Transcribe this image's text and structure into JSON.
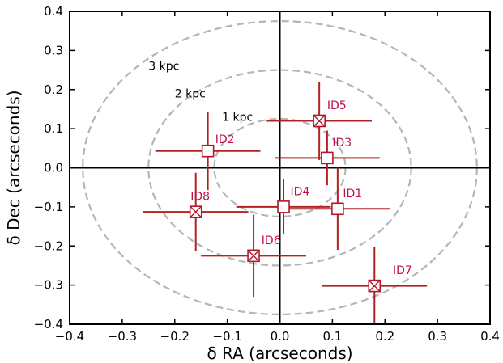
{
  "chart_data": {
    "type": "scatter",
    "xlabel": "δ RA (arcseconds)",
    "ylabel": "δ Dec (arcseconds)",
    "xlim": [
      -0.4,
      0.4
    ],
    "ylim": [
      -0.4,
      0.4
    ],
    "x_ticks": [
      -0.4,
      -0.3,
      -0.2,
      -0.1,
      0.0,
      0.1,
      0.2,
      0.3,
      0.4
    ],
    "y_ticks": [
      -0.4,
      -0.3,
      -0.2,
      -0.1,
      0.0,
      0.1,
      0.2,
      0.3,
      0.4
    ],
    "x_tick_labels": [
      "−0.4",
      "−0.3",
      "−0.2",
      "−0.1",
      "0.0",
      "0.1",
      "0.2",
      "0.3",
      "0.4"
    ],
    "y_tick_labels": [
      "−0.4",
      "−0.3",
      "−0.2",
      "−0.1",
      "0.0",
      "0.1",
      "0.2",
      "0.3",
      "0.4"
    ],
    "grid": false,
    "reference_lines": {
      "x": 0,
      "y": 0
    },
    "rings": [
      {
        "label": "1 kpc",
        "rx": 0.125,
        "ry": 0.125,
        "label_x": -0.11,
        "label_y": 0.12
      },
      {
        "label": "2 kpc",
        "rx": 0.25,
        "ry": 0.25,
        "label_x": -0.2,
        "label_y": 0.18
      },
      {
        "label": "3 kpc",
        "rx": 0.375,
        "ry": 0.375,
        "label_x": -0.25,
        "label_y": 0.25
      }
    ],
    "points": [
      {
        "label": "ID1",
        "x": 0.11,
        "y": -0.105,
        "xerr": [
          0.1,
          0.1
        ],
        "yerr": [
          0.105,
          0.105
        ],
        "marker": "square",
        "label_x": 0.12,
        "label_y": -0.075
      },
      {
        "label": "ID2",
        "x": -0.137,
        "y": 0.043,
        "xerr": [
          0.1,
          0.1
        ],
        "yerr": [
          0.1,
          0.1
        ],
        "marker": "square",
        "label_x": -0.123,
        "label_y": 0.063
      },
      {
        "label": "ID3",
        "x": 0.09,
        "y": 0.025,
        "xerr": [
          0.1,
          0.1
        ],
        "yerr": [
          0.07,
          0.07
        ],
        "marker": "square",
        "label_x": 0.1,
        "label_y": 0.055
      },
      {
        "label": "ID4",
        "x": 0.007,
        "y": -0.1,
        "xerr": [
          0.09,
          0.09
        ],
        "yerr": [
          0.07,
          0.07
        ],
        "marker": "square",
        "label_x": 0.02,
        "label_y": -0.07
      },
      {
        "label": "ID5",
        "x": 0.075,
        "y": 0.12,
        "xerr": [
          0.1,
          0.1
        ],
        "yerr": [
          0.1,
          0.1
        ],
        "marker": "x-square",
        "label_x": 0.09,
        "label_y": 0.15
      },
      {
        "label": "ID6",
        "x": -0.05,
        "y": -0.225,
        "xerr": [
          0.1,
          0.1
        ],
        "yerr": [
          0.105,
          0.105
        ],
        "marker": "x-square",
        "label_x": -0.035,
        "label_y": -0.195
      },
      {
        "label": "ID7",
        "x": 0.18,
        "y": -0.302,
        "xerr": [
          0.1,
          0.1
        ],
        "yerr": [
          0.1,
          0.1
        ],
        "marker": "x-square",
        "label_x": 0.215,
        "label_y": -0.272
      },
      {
        "label": "ID8",
        "x": -0.16,
        "y": -0.113,
        "xerr": [
          0.1,
          0.1
        ],
        "yerr": [
          0.1,
          0.1
        ],
        "marker": "x-square",
        "label_x": -0.17,
        "label_y": -0.083
      }
    ],
    "colors": {
      "points": "#b2182b",
      "errorbars": "#b22222",
      "labels": "#c0104a",
      "rings": "#b5b5b5",
      "axes": "#000000"
    }
  }
}
